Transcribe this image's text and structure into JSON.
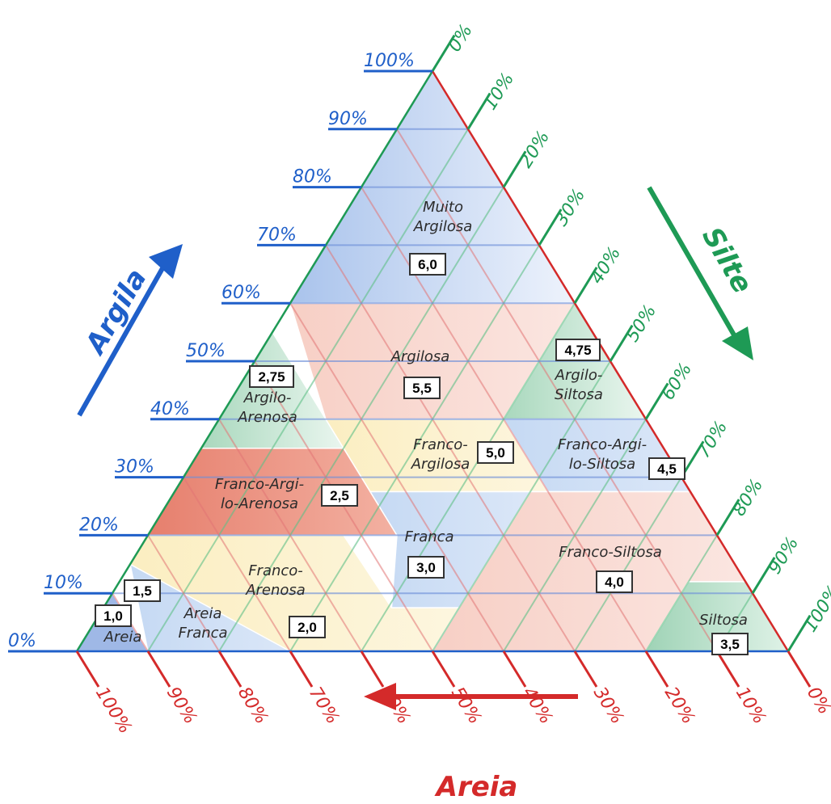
{
  "colors": {
    "clay": "#1f5fc9",
    "silt": "#1e9a55",
    "sand": "#d42a2a"
  },
  "axes": {
    "clay": {
      "title": "Argila",
      "ticks": [
        "0%",
        "10%",
        "20%",
        "30%",
        "40%",
        "50%",
        "60%",
        "70%",
        "80%",
        "90%",
        "100%"
      ]
    },
    "silt": {
      "title": "Silte",
      "ticks": [
        "0%",
        "10%",
        "20%",
        "30%",
        "40%",
        "50%",
        "60%",
        "70%",
        "80%",
        "90%",
        "100%"
      ]
    },
    "sand": {
      "title": "Areia",
      "ticks": [
        "100%",
        "90%",
        "80%",
        "70%",
        "60%",
        "50%",
        "40%",
        "30%",
        "20%",
        "10%",
        "0%"
      ]
    }
  },
  "regions": [
    {
      "id": "muito-argilosa",
      "lines": [
        "Muito",
        "Argilosa"
      ],
      "value": "6,0"
    },
    {
      "id": "argilosa",
      "lines": [
        "Argilosa"
      ],
      "value": "5,5"
    },
    {
      "id": "argilo-siltosa",
      "lines": [
        "Argilo-",
        "Siltosa"
      ],
      "value": "4,75"
    },
    {
      "id": "argilo-arenosa",
      "lines": [
        "Argilo-",
        "Arenosa"
      ],
      "value": "2,75"
    },
    {
      "id": "franco-argilosa",
      "lines": [
        "Franco-",
        "Argilosa"
      ],
      "value": "5,0"
    },
    {
      "id": "franco-argilo-siltosa",
      "lines": [
        "Franco-Argi-",
        "lo-Siltosa"
      ],
      "value": "4,5"
    },
    {
      "id": "franco-argilo-arenosa",
      "lines": [
        "Franco-Argi-",
        "lo-Arenosa"
      ],
      "value": "2,5"
    },
    {
      "id": "franca",
      "lines": [
        "Franca"
      ],
      "value": "3,0"
    },
    {
      "id": "franco-siltosa",
      "lines": [
        "Franco-Siltosa"
      ],
      "value": "4,0"
    },
    {
      "id": "franco-arenosa",
      "lines": [
        "Franco-",
        "Arenosa"
      ],
      "value": "2,0"
    },
    {
      "id": "areia-franca",
      "lines": [
        "Areia",
        "Franca"
      ],
      "value": "1,5"
    },
    {
      "id": "areia",
      "lines": [
        "Areia"
      ],
      "value": "1,0"
    },
    {
      "id": "siltosa",
      "lines": [
        "Siltosa"
      ],
      "value": "3,5"
    }
  ]
}
